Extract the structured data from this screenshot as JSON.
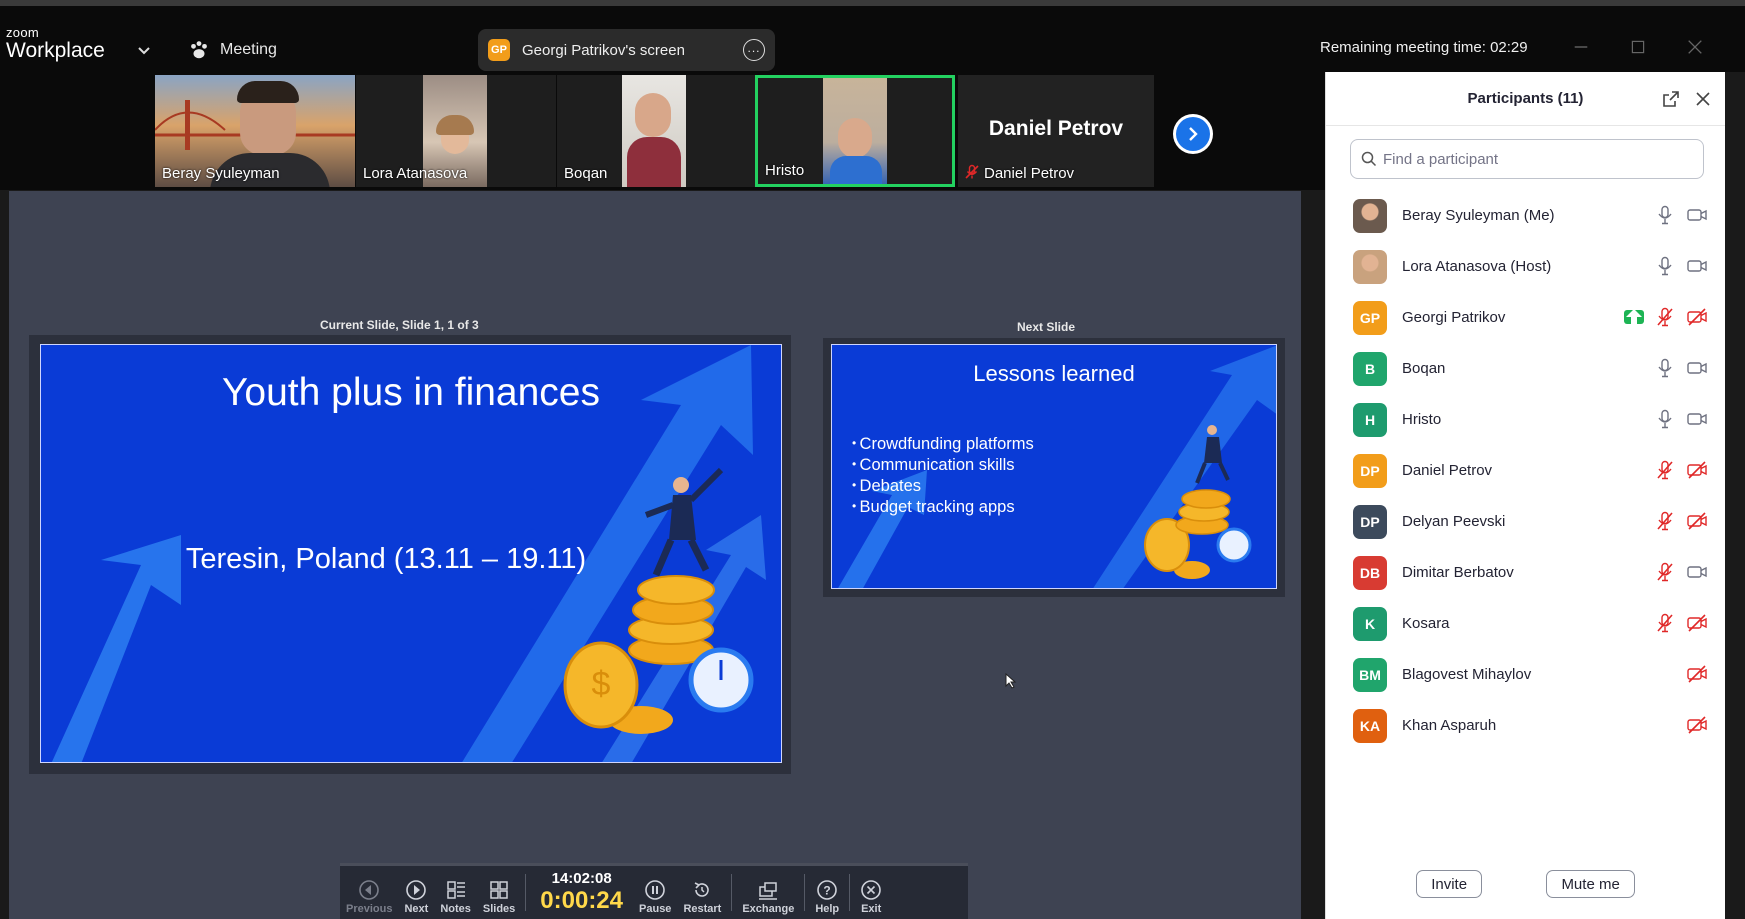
{
  "topbar": {
    "logo_small": "zoom",
    "logo_large": "Workplace",
    "meeting_label": "Meeting",
    "share_badge": "GP",
    "share_label": "Georgi Patrikov's screen",
    "remaining": "Remaining meeting time: 02:29"
  },
  "thumbnails": [
    {
      "name": "Beray Syuleyman"
    },
    {
      "name": "Lora Atanasova"
    },
    {
      "name": "Boqan"
    },
    {
      "name": "Hristo"
    },
    {
      "name": "Daniel Petrov",
      "big": "Daniel Petrov"
    }
  ],
  "presentation": {
    "current_caption": "Current Slide, Slide 1, 1 of 3",
    "next_caption": "Next Slide",
    "current_title": "Youth plus in finances",
    "current_subtitle": "Teresin, Poland (13.11 – 19.11)",
    "next_title": "Lessons learned",
    "next_bullets": [
      "Crowdfunding platforms",
      "Communication skills",
      "Debates",
      "Budget tracking apps"
    ]
  },
  "toolbar": {
    "previous": "Previous",
    "next": "Next",
    "notes": "Notes",
    "slides": "Slides",
    "clock_time": "14:02:08",
    "elapsed": "0:00:24",
    "pause": "Pause",
    "restart": "Restart",
    "exchange": "Exchange",
    "help": "Help",
    "exit": "Exit"
  },
  "panel": {
    "title": "Participants (11)",
    "search_placeholder": "Find a participant",
    "invite": "Invite",
    "mute_me": "Mute me",
    "participants": [
      {
        "name": "Beray Syuleyman (Me)",
        "initials": "",
        "color": "#6b5a4e",
        "mic": "on",
        "video": "on",
        "photo": true
      },
      {
        "name": "Lora Atanasova (Host)",
        "initials": "",
        "color": "#c9a27e",
        "mic": "on",
        "video": "on",
        "photo": true
      },
      {
        "name": "Georgi Patrikov",
        "initials": "GP",
        "color": "#f29d1a",
        "mic": "off",
        "video": "off",
        "sharing": true
      },
      {
        "name": "Boqan",
        "initials": "B",
        "color": "#20a56c",
        "mic": "on",
        "video": "on"
      },
      {
        "name": "Hristo",
        "initials": "H",
        "color": "#1e9b6e",
        "mic": "on",
        "video": "on"
      },
      {
        "name": "Daniel Petrov",
        "initials": "DP",
        "color": "#f29d1a",
        "mic": "off",
        "video": "off"
      },
      {
        "name": "Delyan Peevski",
        "initials": "DP",
        "color": "#3c4a5c",
        "mic": "off",
        "video": "off"
      },
      {
        "name": "Dimitar Berbatov",
        "initials": "DB",
        "color": "#d83b32",
        "mic": "off",
        "video": "on"
      },
      {
        "name": "Kosara",
        "initials": "K",
        "color": "#1e9b6e",
        "mic": "off",
        "video": "off"
      },
      {
        "name": "Blagovest Mihaylov",
        "initials": "BM",
        "color": "#20a56c",
        "mic": "none",
        "video": "off"
      },
      {
        "name": "Khan Asparuh",
        "initials": "KA",
        "color": "#e0600f",
        "mic": "none",
        "video": "off"
      }
    ]
  },
  "colors": {
    "active_speaker": "#23d160",
    "slide_blue": "#0a3bd6",
    "muted_red": "#e02828",
    "elapsed_yellow": "#ffd84a"
  }
}
